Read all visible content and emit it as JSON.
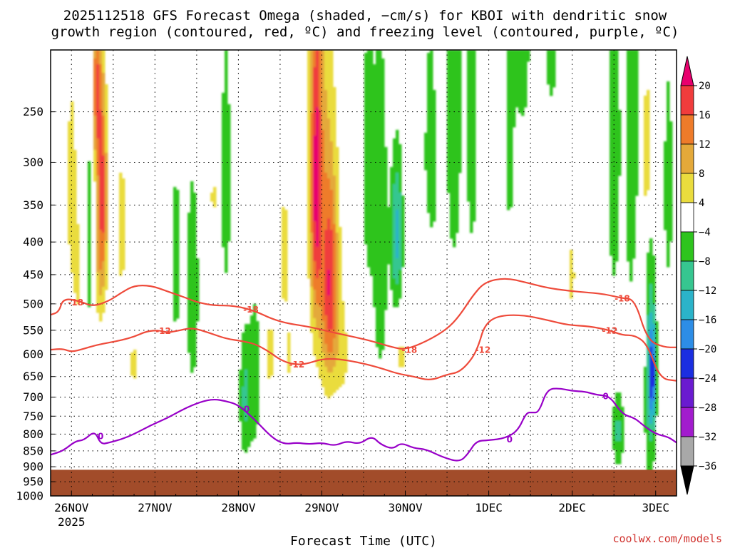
{
  "chart_data": {
    "type": "heatmap",
    "title_line1": "2025112518 GFS Forecast Omega (shaded, −cm/s) for KBOI with dendritic snow",
    "title_line2": "growth region (contoured, red, ºC) and freezing level (contoured, purple, ºC)",
    "xlabel": "Forecast Time (UTC)",
    "credit": "coolwx.com/models",
    "x_ticks": [
      "26NOV",
      "27NOV",
      "28NOV",
      "29NOV",
      "30NOV",
      "1DEC",
      "2DEC",
      "3DEC"
    ],
    "x_year": "2025",
    "x_range_days": [
      25.75,
      33.25
    ],
    "y_ticks": [
      250,
      300,
      350,
      400,
      450,
      500,
      550,
      600,
      650,
      700,
      750,
      800,
      850,
      900,
      950,
      1000
    ],
    "ylim_hpa": [
      1000,
      200
    ],
    "y_scale": "log-pressure",
    "grid": "dotted",
    "colorbar": {
      "labels": [
        "20",
        "16",
        "12",
        "8",
        "4",
        "−4",
        "−8",
        "−12",
        "−16",
        "−20",
        "−24",
        "−28",
        "−32",
        "−36"
      ],
      "colors": [
        "#e8006e",
        "#f03c3c",
        "#ee7b2a",
        "#e4a93a",
        "#eadc3e",
        "#ffffff",
        "#2ec41e",
        "#36c690",
        "#2bb3c9",
        "#2d8de6",
        "#1b2ee0",
        "#6a1bd0",
        "#a21ccd",
        "#a8a8a8",
        "#000000"
      ]
    },
    "ground": {
      "color": "#a24c2a",
      "surface_hpa": 910
    },
    "omega_blobs": [
      {
        "day": 26.0,
        "p": 330,
        "sx": 0.05,
        "sy": 100,
        "v": 6
      },
      {
        "day": 26.08,
        "p": 450,
        "sx": 0.04,
        "sy": 60,
        "v": 5
      },
      {
        "day": 26.3,
        "p": 230,
        "sx": 0.04,
        "sy": 60,
        "v": 16
      },
      {
        "day": 26.37,
        "p": 330,
        "sx": 0.04,
        "sy": 80,
        "v": 17
      },
      {
        "day": 26.33,
        "p": 450,
        "sx": 0.06,
        "sy": 70,
        "v": 7
      },
      {
        "day": 26.22,
        "p": 400,
        "sx": 0.05,
        "sy": 160,
        "v": -6
      },
      {
        "day": 26.6,
        "p": 380,
        "sx": 0.05,
        "sy": 80,
        "v": 6
      },
      {
        "day": 26.75,
        "p": 620,
        "sx": 0.06,
        "sy": 50,
        "v": 5
      },
      {
        "day": 27.25,
        "p": 430,
        "sx": 0.05,
        "sy": 120,
        "v": -6
      },
      {
        "day": 27.45,
        "p": 480,
        "sx": 0.06,
        "sy": 150,
        "v": -7
      },
      {
        "day": 27.7,
        "p": 340,
        "sx": 0.03,
        "sy": 30,
        "v": 5
      },
      {
        "day": 27.85,
        "p": 320,
        "sx": 0.05,
        "sy": 140,
        "v": -6
      },
      {
        "day": 28.08,
        "p": 700,
        "sx": 0.05,
        "sy": 120,
        "v": -9
      },
      {
        "day": 28.2,
        "p": 650,
        "sx": 0.05,
        "sy": 160,
        "v": -6
      },
      {
        "day": 28.38,
        "p": 600,
        "sx": 0.04,
        "sy": 100,
        "v": 5
      },
      {
        "day": 28.55,
        "p": 420,
        "sx": 0.04,
        "sy": 60,
        "v": 8
      },
      {
        "day": 28.6,
        "p": 600,
        "sx": 0.04,
        "sy": 60,
        "v": 5
      },
      {
        "day": 28.93,
        "p": 320,
        "sx": 0.05,
        "sy": 130,
        "v": 18
      },
      {
        "day": 29.1,
        "p": 470,
        "sx": 0.07,
        "sy": 120,
        "v": 17
      },
      {
        "day": 29.0,
        "p": 300,
        "sx": 0.11,
        "sy": 260,
        "v": 6
      },
      {
        "day": 29.25,
        "p": 600,
        "sx": 0.06,
        "sy": 80,
        "v": 5
      },
      {
        "day": 29.55,
        "p": 300,
        "sx": 0.05,
        "sy": 120,
        "v": -6
      },
      {
        "day": 29.7,
        "p": 400,
        "sx": 0.07,
        "sy": 200,
        "v": -7
      },
      {
        "day": 29.9,
        "p": 390,
        "sx": 0.05,
        "sy": 80,
        "v": -13
      },
      {
        "day": 29.95,
        "p": 600,
        "sx": 0.04,
        "sy": 60,
        "v": 5
      },
      {
        "day": 30.3,
        "p": 320,
        "sx": 0.07,
        "sy": 140,
        "v": -6
      },
      {
        "day": 30.25,
        "p": 450,
        "sx": 0.06,
        "sy": 60,
        "v": 5
      },
      {
        "day": 30.58,
        "p": 250,
        "sx": 0.07,
        "sy": 150,
        "v": -7
      },
      {
        "day": 30.8,
        "p": 250,
        "sx": 0.06,
        "sy": 150,
        "v": -6
      },
      {
        "day": 31.25,
        "p": 260,
        "sx": 0.04,
        "sy": 120,
        "v": -6
      },
      {
        "day": 31.4,
        "p": 200,
        "sx": 0.08,
        "sy": 50,
        "v": -7
      },
      {
        "day": 31.55,
        "p": 260,
        "sx": 0.04,
        "sy": 100,
        "v": 4
      },
      {
        "day": 31.75,
        "p": 200,
        "sx": 0.06,
        "sy": 40,
        "v": -6
      },
      {
        "day": 32.0,
        "p": 450,
        "sx": 0.03,
        "sy": 80,
        "v": 5
      },
      {
        "day": 32.2,
        "p": 300,
        "sx": 0.04,
        "sy": 50,
        "v": 4
      },
      {
        "day": 32.5,
        "p": 280,
        "sx": 0.06,
        "sy": 160,
        "v": -7
      },
      {
        "day": 32.55,
        "p": 790,
        "sx": 0.05,
        "sy": 80,
        "v": -9
      },
      {
        "day": 32.72,
        "p": 300,
        "sx": 0.06,
        "sy": 160,
        "v": -8
      },
      {
        "day": 32.8,
        "p": 520,
        "sx": 0.05,
        "sy": 120,
        "v": 5
      },
      {
        "day": 32.9,
        "p": 290,
        "sx": 0.04,
        "sy": 60,
        "v": 10
      },
      {
        "day": 32.93,
        "p": 650,
        "sx": 0.05,
        "sy": 250,
        "v": -9
      },
      {
        "day": 32.96,
        "p": 640,
        "sx": 0.03,
        "sy": 80,
        "v": -18
      },
      {
        "day": 33.15,
        "p": 330,
        "sx": 0.04,
        "sy": 100,
        "v": -7
      }
    ],
    "contours": [
      {
        "label": "-18",
        "color": "#ee4a3a",
        "points": [
          [
            25.75,
            520
          ],
          [
            25.85,
            515
          ],
          [
            25.9,
            490
          ],
          [
            26.1,
            495
          ],
          [
            26.25,
            505
          ],
          [
            26.45,
            495
          ],
          [
            26.6,
            480
          ],
          [
            26.75,
            468
          ],
          [
            26.95,
            468
          ],
          [
            27.15,
            478
          ],
          [
            27.35,
            488
          ],
          [
            27.5,
            497
          ],
          [
            27.7,
            503
          ],
          [
            27.95,
            503
          ],
          [
            28.2,
            513
          ],
          [
            28.4,
            528
          ],
          [
            28.6,
            537
          ],
          [
            28.85,
            543
          ],
          [
            29.1,
            553
          ],
          [
            29.4,
            564
          ],
          [
            29.6,
            572
          ],
          [
            29.85,
            585
          ],
          [
            30.0,
            590
          ],
          [
            30.25,
            573
          ],
          [
            30.5,
            548
          ],
          [
            30.65,
            522
          ],
          [
            30.8,
            487
          ],
          [
            30.95,
            462
          ],
          [
            31.2,
            455
          ],
          [
            31.45,
            463
          ],
          [
            31.7,
            472
          ],
          [
            31.95,
            477
          ],
          [
            32.2,
            480
          ],
          [
            32.4,
            483
          ],
          [
            32.6,
            490
          ],
          [
            32.75,
            492
          ],
          [
            32.9,
            570
          ],
          [
            33.1,
            585
          ],
          [
            33.25,
            585
          ]
        ],
        "labels": [
          {
            "day": 26.05,
            "p": 497
          },
          {
            "day": 28.15,
            "p": 510
          },
          {
            "day": 30.05,
            "p": 590
          },
          {
            "day": 32.6,
            "p": 490
          }
        ]
      },
      {
        "label": "-12",
        "color": "#ee4a3a",
        "points": [
          [
            25.75,
            590
          ],
          [
            25.9,
            588
          ],
          [
            26.0,
            595
          ],
          [
            26.15,
            588
          ],
          [
            26.3,
            580
          ],
          [
            26.45,
            575
          ],
          [
            26.6,
            570
          ],
          [
            26.75,
            563
          ],
          [
            26.9,
            552
          ],
          [
            27.05,
            550
          ],
          [
            27.15,
            555
          ],
          [
            27.3,
            550
          ],
          [
            27.45,
            545
          ],
          [
            27.65,
            555
          ],
          [
            27.85,
            567
          ],
          [
            28.05,
            572
          ],
          [
            28.2,
            578
          ],
          [
            28.35,
            592
          ],
          [
            28.5,
            612
          ],
          [
            28.65,
            622
          ],
          [
            28.8,
            622
          ],
          [
            29.0,
            610
          ],
          [
            29.2,
            610
          ],
          [
            29.45,
            618
          ],
          [
            29.7,
            630
          ],
          [
            29.9,
            643
          ],
          [
            30.1,
            650
          ],
          [
            30.3,
            660
          ],
          [
            30.5,
            645
          ],
          [
            30.65,
            640
          ],
          [
            30.8,
            610
          ],
          [
            30.88,
            580
          ],
          [
            30.95,
            540
          ],
          [
            31.1,
            522
          ],
          [
            31.4,
            520
          ],
          [
            31.7,
            530
          ],
          [
            31.95,
            540
          ],
          [
            32.2,
            542
          ],
          [
            32.45,
            550
          ],
          [
            32.6,
            560
          ],
          [
            32.75,
            560
          ],
          [
            32.9,
            578
          ],
          [
            33.05,
            655
          ],
          [
            33.25,
            660
          ]
        ],
        "labels": [
          {
            "day": 27.1,
            "p": 551
          },
          {
            "day": 28.7,
            "p": 622
          },
          {
            "day": 30.93,
            "p": 590
          },
          {
            "day": 32.45,
            "p": 550
          }
        ]
      },
      {
        "label": "0",
        "color": "#9800c8",
        "points": [
          [
            25.75,
            862
          ],
          [
            25.9,
            850
          ],
          [
            26.05,
            820
          ],
          [
            26.15,
            818
          ],
          [
            26.28,
            790
          ],
          [
            26.35,
            830
          ],
          [
            26.45,
            825
          ],
          [
            26.6,
            815
          ],
          [
            26.75,
            800
          ],
          [
            26.95,
            775
          ],
          [
            27.15,
            755
          ],
          [
            27.35,
            730
          ],
          [
            27.55,
            712
          ],
          [
            27.7,
            705
          ],
          [
            27.85,
            710
          ],
          [
            28.0,
            720
          ],
          [
            28.2,
            760
          ],
          [
            28.4,
            810
          ],
          [
            28.55,
            830
          ],
          [
            28.7,
            825
          ],
          [
            28.85,
            830
          ],
          [
            29.0,
            825
          ],
          [
            29.15,
            835
          ],
          [
            29.3,
            820
          ],
          [
            29.45,
            830
          ],
          [
            29.6,
            805
          ],
          [
            29.7,
            830
          ],
          [
            29.85,
            845
          ],
          [
            29.95,
            825
          ],
          [
            30.1,
            842
          ],
          [
            30.25,
            845
          ],
          [
            30.45,
            870
          ],
          [
            30.65,
            885
          ],
          [
            30.75,
            860
          ],
          [
            30.85,
            820
          ],
          [
            31.0,
            818
          ],
          [
            31.2,
            812
          ],
          [
            31.35,
            790
          ],
          [
            31.45,
            740
          ],
          [
            31.52,
            740
          ],
          [
            31.6,
            740
          ],
          [
            31.7,
            680
          ],
          [
            31.85,
            678
          ],
          [
            32.0,
            685
          ],
          [
            32.15,
            686
          ],
          [
            32.3,
            695
          ],
          [
            32.45,
            697
          ],
          [
            32.6,
            745
          ],
          [
            32.75,
            755
          ],
          [
            32.85,
            775
          ],
          [
            33.0,
            800
          ],
          [
            33.15,
            808
          ],
          [
            33.25,
            825
          ]
        ],
        "labels": [
          {
            "day": 26.35,
            "p": 805
          },
          {
            "day": 28.1,
            "p": 730
          },
          {
            "day": 31.25,
            "p": 815
          },
          {
            "day": 32.4,
            "p": 697
          }
        ]
      }
    ]
  }
}
